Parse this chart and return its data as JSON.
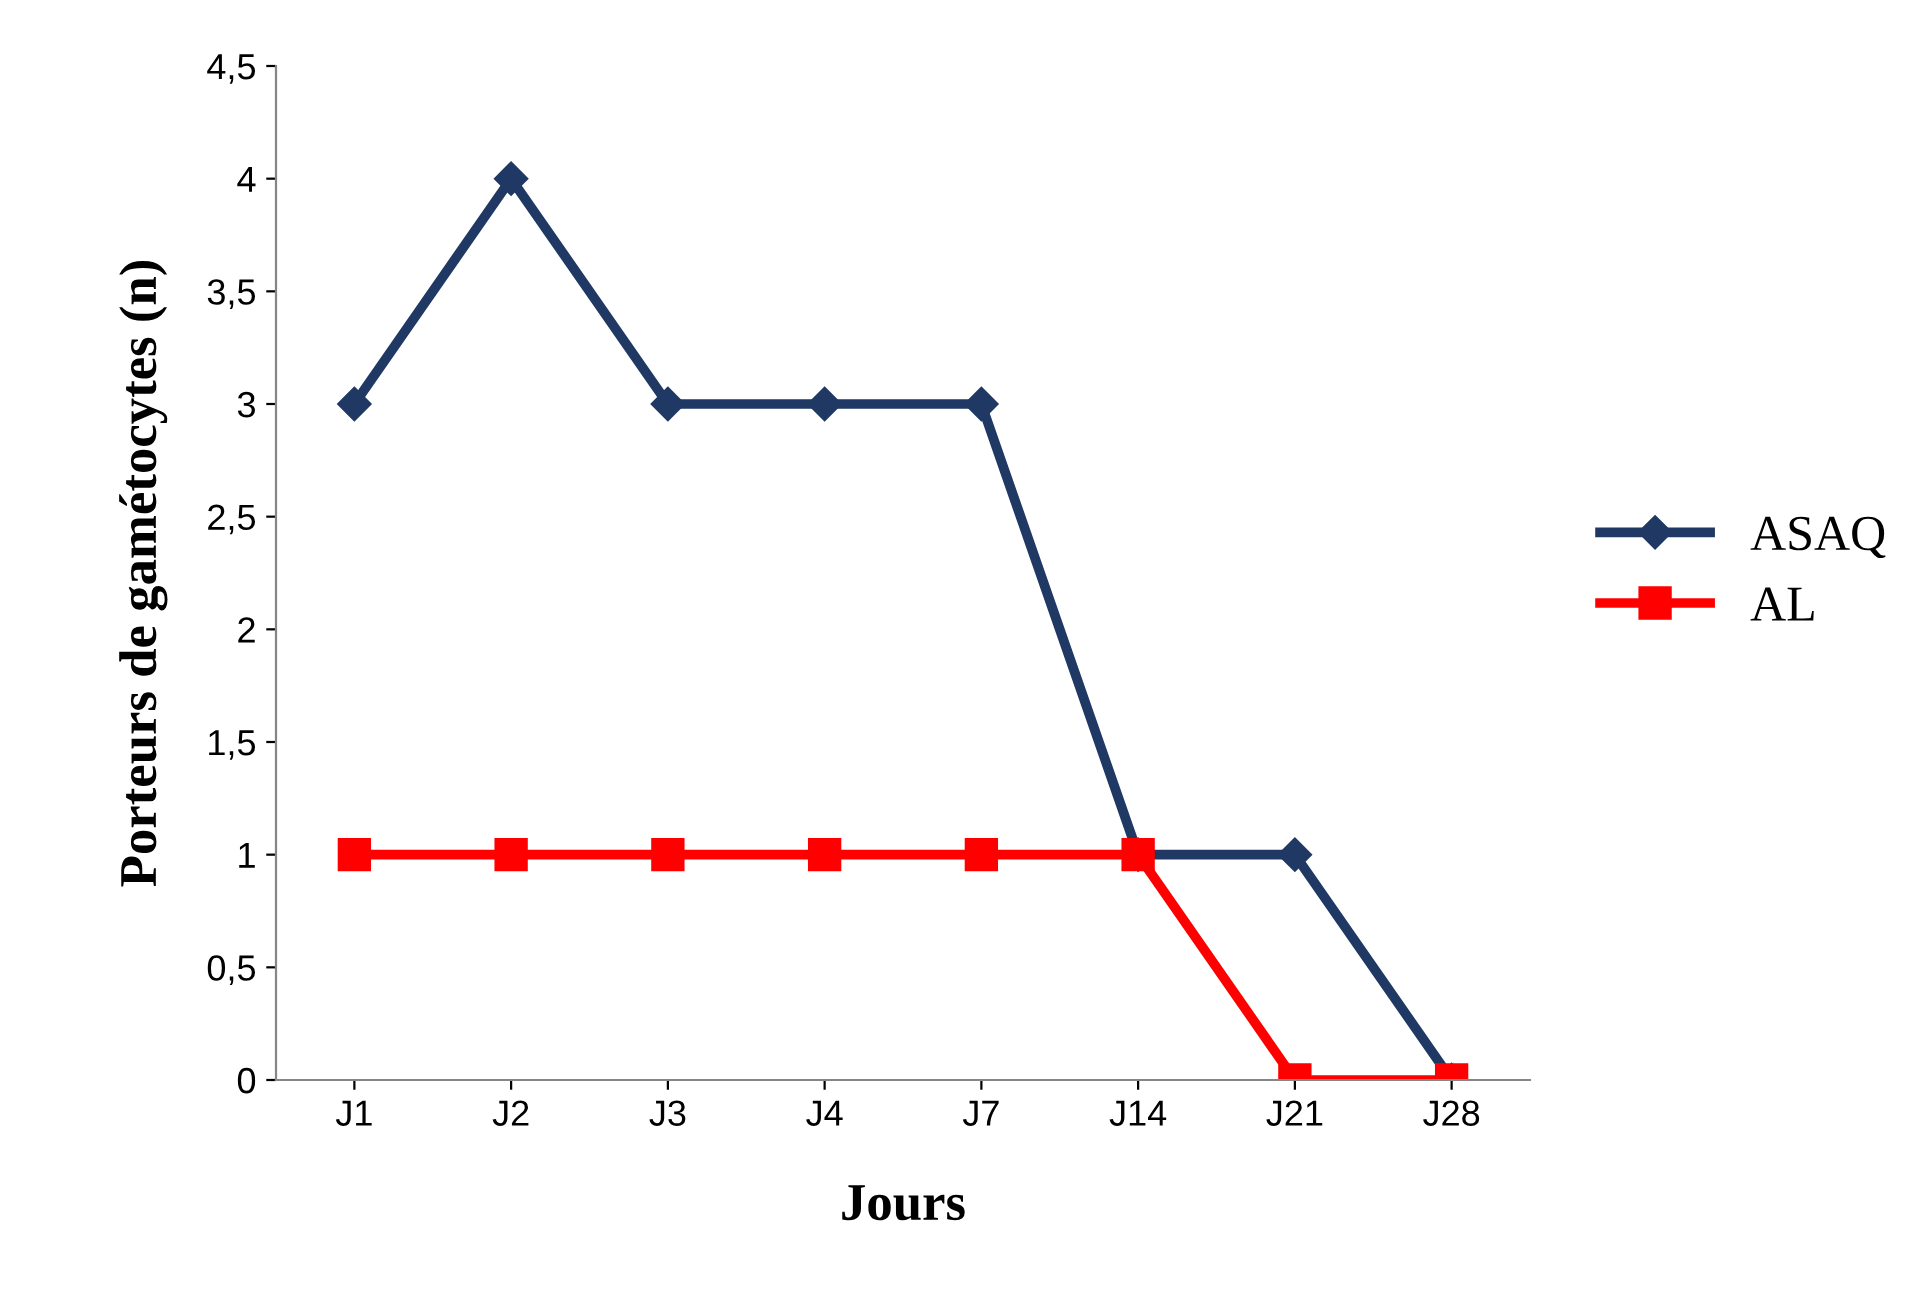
{
  "chart_data": {
    "type": "line",
    "xlabel": "Jours",
    "ylabel": "Porteurs de gamétocytes (n)",
    "categories": [
      "J1",
      "J2",
      "J3",
      "J4",
      "J7",
      "J14",
      "J21",
      "J28"
    ],
    "series": [
      {
        "name": "ASAQ",
        "color": "#1f3864",
        "marker": "diamond",
        "values": [
          3,
          4,
          3,
          3,
          3,
          1,
          1,
          0
        ]
      },
      {
        "name": "AL",
        "color": "#ff0000",
        "marker": "square",
        "values": [
          1,
          1,
          1,
          1,
          1,
          1,
          0,
          0
        ]
      }
    ],
    "ylim": [
      0,
      4.5
    ],
    "yticks": [
      {
        "value": 0,
        "label": "0"
      },
      {
        "value": 0.5,
        "label": "0,5"
      },
      {
        "value": 1,
        "label": "1"
      },
      {
        "value": 1.5,
        "label": "1,5"
      },
      {
        "value": 2,
        "label": "2"
      },
      {
        "value": 2.5,
        "label": "2,5"
      },
      {
        "value": 3,
        "label": "3"
      },
      {
        "value": 3.5,
        "label": "3,5"
      },
      {
        "value": 4,
        "label": "4"
      },
      {
        "value": 4.5,
        "label": "4,5"
      }
    ],
    "grid": false,
    "legend": "right",
    "line_style": "solid"
  }
}
